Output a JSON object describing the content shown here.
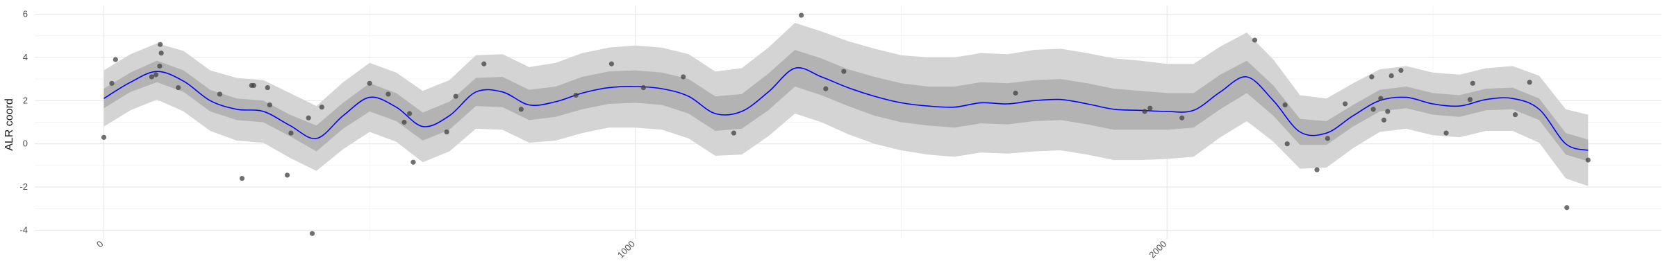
{
  "chart_data": {
    "type": "scatter",
    "title": "",
    "xlabel": "",
    "ylabel": "ALR coord",
    "xlim": [
      -130,
      2930
    ],
    "ylim": [
      -4.4,
      6.4
    ],
    "x_ticks": [
      0,
      1000,
      2000
    ],
    "x_minor_ticks": [
      500,
      1500,
      2500
    ],
    "y_ticks": [
      -4,
      -2,
      0,
      2,
      4,
      6
    ],
    "grid": true,
    "legend": "none",
    "colors": {
      "points": "#404040",
      "mean_line": "#0000ff",
      "inner_band": "#b3b3b3",
      "outer_band": "#d4d4d4",
      "grid_major": "#e8e8e8",
      "grid_minor": "#f3f3f3"
    },
    "points": [
      [
        0,
        0.3
      ],
      [
        15,
        2.8
      ],
      [
        22,
        3.9
      ],
      [
        90,
        3.1
      ],
      [
        98,
        3.2
      ],
      [
        105,
        3.6
      ],
      [
        106,
        4.6
      ],
      [
        108,
        4.2
      ],
      [
        140,
        2.6
      ],
      [
        218,
        2.3
      ],
      [
        260,
        -1.6
      ],
      [
        278,
        2.7
      ],
      [
        282,
        2.7
      ],
      [
        308,
        2.6
      ],
      [
        312,
        1.8
      ],
      [
        345,
        -1.45
      ],
      [
        352,
        0.5
      ],
      [
        385,
        1.2
      ],
      [
        392,
        -4.15
      ],
      [
        410,
        1.7
      ],
      [
        500,
        2.8
      ],
      [
        535,
        2.3
      ],
      [
        565,
        1.0
      ],
      [
        575,
        1.4
      ],
      [
        582,
        -0.85
      ],
      [
        645,
        0.55
      ],
      [
        662,
        2.2
      ],
      [
        715,
        3.7
      ],
      [
        785,
        1.6
      ],
      [
        888,
        2.25
      ],
      [
        955,
        3.7
      ],
      [
        1015,
        2.6
      ],
      [
        1090,
        3.1
      ],
      [
        1185,
        0.5
      ],
      [
        1312,
        5.95
      ],
      [
        1358,
        2.55
      ],
      [
        1392,
        3.35
      ],
      [
        1715,
        2.35
      ],
      [
        1958,
        1.5
      ],
      [
        1968,
        1.65
      ],
      [
        2028,
        1.2
      ],
      [
        2165,
        4.8
      ],
      [
        2222,
        1.8
      ],
      [
        2226,
        0.0
      ],
      [
        2282,
        -1.2
      ],
      [
        2302,
        0.25
      ],
      [
        2335,
        1.85
      ],
      [
        2385,
        3.1
      ],
      [
        2388,
        1.6
      ],
      [
        2402,
        2.1
      ],
      [
        2408,
        1.1
      ],
      [
        2415,
        1.5
      ],
      [
        2422,
        3.15
      ],
      [
        2440,
        3.4
      ],
      [
        2525,
        0.5
      ],
      [
        2570,
        2.05
      ],
      [
        2575,
        2.8
      ],
      [
        2655,
        1.35
      ],
      [
        2682,
        2.85
      ],
      [
        2752,
        -2.95
      ],
      [
        2792,
        -0.75
      ]
    ],
    "mean_curve": {
      "x": [
        0,
        50,
        100,
        150,
        200,
        250,
        300,
        350,
        400,
        450,
        500,
        550,
        600,
        650,
        700,
        750,
        800,
        850,
        900,
        950,
        1000,
        1050,
        1100,
        1150,
        1200,
        1250,
        1300,
        1350,
        1400,
        1450,
        1500,
        1550,
        1600,
        1650,
        1700,
        1750,
        1800,
        1850,
        1900,
        1950,
        2000,
        2050,
        2100,
        2150,
        2200,
        2250,
        2300,
        2350,
        2400,
        2450,
        2500,
        2550,
        2600,
        2650,
        2700,
        2750,
        2792
      ],
      "y": [
        2.1,
        2.85,
        3.35,
        2.9,
        2.0,
        1.6,
        1.5,
        0.85,
        0.25,
        1.3,
        2.15,
        1.7,
        0.8,
        1.3,
        2.4,
        2.4,
        1.8,
        1.95,
        2.35,
        2.6,
        2.65,
        2.55,
        2.2,
        1.4,
        1.5,
        2.4,
        3.5,
        3.1,
        2.6,
        2.2,
        1.9,
        1.75,
        1.7,
        1.9,
        1.85,
        2.0,
        2.05,
        1.85,
        1.6,
        1.55,
        1.5,
        1.55,
        2.4,
        3.1,
        2.0,
        0.55,
        0.5,
        1.3,
        2.0,
        2.15,
        1.85,
        1.75,
        2.05,
        2.1,
        1.6,
        0.0,
        -0.3
      ]
    },
    "inner_band_halfwidth": [
      0.45,
      0.45,
      0.5,
      0.5,
      0.5,
      0.5,
      0.5,
      0.5,
      0.6,
      0.6,
      0.65,
      0.65,
      0.65,
      0.65,
      0.65,
      0.7,
      0.7,
      0.7,
      0.75,
      0.75,
      0.75,
      0.75,
      0.8,
      0.8,
      0.8,
      0.85,
      0.85,
      0.85,
      0.85,
      0.9,
      0.9,
      0.9,
      0.95,
      0.95,
      0.95,
      0.95,
      0.95,
      0.95,
      0.95,
      0.9,
      0.85,
      0.8,
      0.8,
      0.75,
      0.7,
      0.6,
      0.55,
      0.5,
      0.5,
      0.5,
      0.5,
      0.5,
      0.5,
      0.5,
      0.5,
      0.5,
      0.5
    ],
    "outer_band_halfwidth": [
      1.3,
      1.3,
      1.3,
      1.4,
      1.4,
      1.45,
      1.45,
      1.5,
      1.5,
      1.55,
      1.6,
      1.6,
      1.65,
      1.65,
      1.7,
      1.75,
      1.75,
      1.8,
      1.85,
      1.85,
      1.9,
      1.9,
      1.95,
      1.95,
      2.0,
      2.05,
      2.1,
      2.1,
      2.15,
      2.2,
      2.2,
      2.25,
      2.3,
      2.3,
      2.3,
      2.35,
      2.35,
      2.35,
      2.35,
      2.3,
      2.2,
      2.15,
      2.1,
      2.05,
      1.9,
      1.7,
      1.6,
      1.5,
      1.45,
      1.45,
      1.45,
      1.45,
      1.45,
      1.5,
      1.55,
      1.6,
      1.65
    ]
  }
}
